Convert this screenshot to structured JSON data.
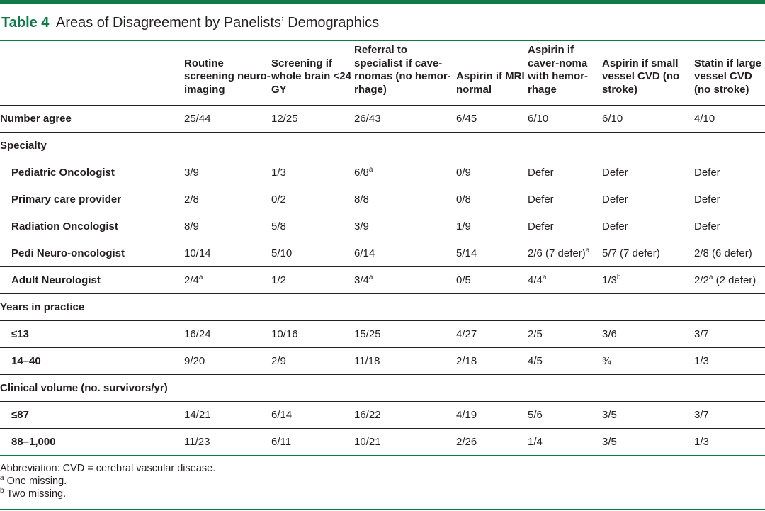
{
  "caption": {
    "label": "Table 4",
    "title": "Areas of Disagreement by Panelists’ Demographics"
  },
  "header": [
    "",
    "Routine screening neuro-imaging",
    "Screening if whole brain <24 GY",
    "Referral to specialist if cave-rnomas (no hemor-rhage)",
    "Aspirin if MRI normal",
    "Aspirin if caver-noma with hemor-rhage",
    "Aspirin if small vessel CVD (no stroke)",
    "Statin if large vessel CVD (no stroke)"
  ],
  "rows": [
    {
      "label": "Number agree",
      "cells": [
        "25/44",
        "12/25",
        "26/43",
        "6/45",
        "6/10",
        "6/10",
        "4/10"
      ]
    },
    {
      "label": "Specialty",
      "group": true
    },
    {
      "label": "Pediatric Oncologist",
      "cells": [
        "3/9",
        "1/3",
        "6/8",
        "0/9",
        "Defer",
        "Defer",
        "Defer"
      ]
    },
    {
      "label": "Primary care provider",
      "cells": [
        "2/8",
        "0/2",
        "8/8",
        "0/8",
        "Defer",
        "Defer",
        "Defer"
      ]
    },
    {
      "label": "Radiation Oncologist",
      "cells": [
        "8/9",
        "5/8",
        "3/9",
        "1/9",
        "Defer",
        "Defer",
        "Defer"
      ]
    },
    {
      "label": "Pedi Neuro-oncologist",
      "cells": [
        "10/14",
        "5/10",
        "6/14",
        "5/14",
        "2/6 (7 defer)",
        "5/7 (7 defer)",
        "2/8 (6 defer)"
      ]
    },
    {
      "label": "Adult Neurologist",
      "cells": [
        "2/4",
        "1/2",
        "3/4",
        "0/5",
        "4/4",
        "1/3",
        "2/2 (2 defer)"
      ]
    },
    {
      "label": "Years in practice",
      "group": true
    },
    {
      "label": "≤13",
      "cells": [
        "16/24",
        "10/16",
        "15/25",
        "4/27",
        "2/5",
        "3/6",
        "3/7"
      ]
    },
    {
      "label": "14–40",
      "cells": [
        "9/20",
        "2/9",
        "11/18",
        "2/18",
        "4/5",
        "¾",
        "1/3"
      ]
    },
    {
      "label": "Clinical volume (no. survivors/yr)",
      "group": true
    },
    {
      "label": "≤87",
      "cells": [
        "14/21",
        "6/14",
        "16/22",
        "4/19",
        "5/6",
        "3/5",
        "3/7"
      ]
    },
    {
      "label": "88–1,000",
      "cells": [
        "11/23",
        "6/11",
        "10/21",
        "2/26",
        "1/4",
        "3/5",
        "1/3"
      ]
    }
  ],
  "notes": {
    "abbreviation": "Abbreviation: CVD = cerebral vascular disease.",
    "a": "a",
    "a_text": "One missing.",
    "b": "b",
    "b_text": "Two missing."
  },
  "colors": {
    "accent": "#0f7a48",
    "text": "#231f20"
  }
}
